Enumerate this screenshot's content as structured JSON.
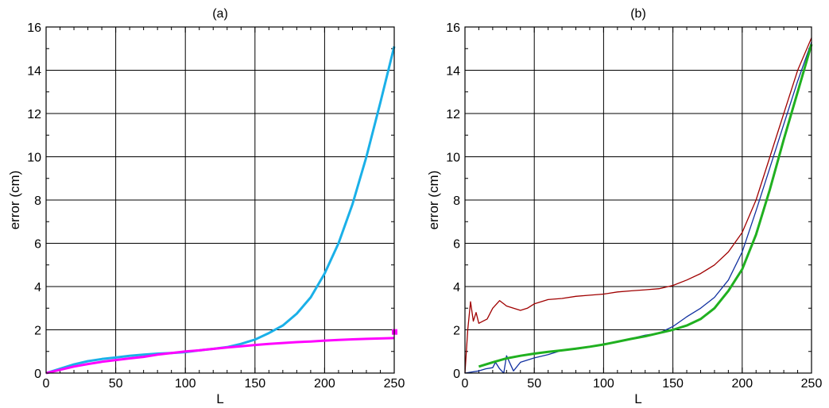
{
  "chart_data": [
    {
      "type": "line",
      "title": "(a)",
      "xlabel": "L",
      "ylabel": "error (cm)",
      "xlim": [
        0,
        250
      ],
      "ylim": [
        0,
        16
      ],
      "xticks": [
        "0",
        "50",
        "100",
        "150",
        "200",
        "250"
      ],
      "yticks": [
        "0",
        "2",
        "4",
        "6",
        "8",
        "10",
        "12",
        "14",
        "16"
      ],
      "grid": true,
      "series": [
        {
          "color": "#1ab0e8",
          "x": [
            0,
            10,
            20,
            30,
            40,
            50,
            60,
            70,
            80,
            90,
            100,
            110,
            120,
            130,
            140,
            150,
            160,
            170,
            180,
            190,
            200,
            210,
            220,
            230,
            240,
            250
          ],
          "y": [
            0,
            0.2,
            0.4,
            0.55,
            0.65,
            0.72,
            0.8,
            0.85,
            0.9,
            0.93,
            0.97,
            1.05,
            1.12,
            1.2,
            1.35,
            1.55,
            1.85,
            2.2,
            2.75,
            3.5,
            4.6,
            6.0,
            7.8,
            10.0,
            12.5,
            15.1
          ]
        },
        {
          "color": "#ff00ff",
          "marker_end": true,
          "x": [
            0,
            10,
            20,
            30,
            40,
            50,
            60,
            70,
            80,
            90,
            100,
            110,
            120,
            130,
            140,
            150,
            160,
            170,
            180,
            190,
            200,
            210,
            220,
            230,
            240,
            250
          ],
          "y": [
            0,
            0.15,
            0.3,
            0.42,
            0.52,
            0.6,
            0.68,
            0.75,
            0.85,
            0.93,
            1.0,
            1.05,
            1.12,
            1.18,
            1.24,
            1.3,
            1.35,
            1.39,
            1.43,
            1.46,
            1.5,
            1.53,
            1.56,
            1.58,
            1.6,
            1.62
          ]
        }
      ]
    },
    {
      "type": "line",
      "title": "(b)",
      "xlabel": "L",
      "ylabel": "error (cm)",
      "xlim": [
        0,
        250
      ],
      "ylim": [
        0,
        16
      ],
      "xticks": [
        "0",
        "50",
        "100",
        "150",
        "200",
        "250"
      ],
      "yticks": [
        "0",
        "2",
        "4",
        "6",
        "8",
        "10",
        "12",
        "14",
        "16"
      ],
      "grid": true,
      "series": [
        {
          "color": "#a00000",
          "x": [
            0,
            2,
            4,
            6,
            8,
            10,
            13,
            16,
            20,
            25,
            30,
            35,
            40,
            45,
            50,
            60,
            70,
            80,
            90,
            100,
            110,
            120,
            130,
            140,
            150,
            160,
            170,
            180,
            190,
            200,
            210,
            220,
            230,
            240,
            250
          ],
          "y": [
            0,
            2.0,
            3.3,
            2.4,
            2.8,
            2.3,
            2.4,
            2.5,
            3.0,
            3.35,
            3.1,
            3.0,
            2.9,
            3.0,
            3.2,
            3.4,
            3.45,
            3.55,
            3.6,
            3.65,
            3.75,
            3.8,
            3.85,
            3.9,
            4.05,
            4.3,
            4.6,
            5.0,
            5.6,
            6.5,
            8.0,
            10.0,
            12.0,
            14.0,
            15.5
          ]
        },
        {
          "color": "#1030a0",
          "x": [
            0,
            5,
            10,
            15,
            20,
            22,
            25,
            28,
            30,
            35,
            40,
            50,
            60,
            70,
            80,
            90,
            100,
            110,
            120,
            130,
            140,
            150,
            160,
            170,
            180,
            190,
            200,
            210,
            220,
            230,
            240,
            250
          ],
          "y": [
            0,
            0.05,
            0.1,
            0.2,
            0.25,
            0.5,
            0.2,
            0.0,
            0.8,
            0.1,
            0.5,
            0.7,
            0.85,
            1.05,
            1.1,
            1.2,
            1.35,
            1.45,
            1.6,
            1.75,
            1.85,
            2.15,
            2.6,
            3.0,
            3.5,
            4.3,
            5.6,
            7.5,
            9.5,
            11.5,
            13.5,
            15.3
          ]
        },
        {
          "color": "#20b020",
          "x": [
            10,
            20,
            30,
            40,
            50,
            60,
            70,
            80,
            90,
            100,
            110,
            120,
            130,
            140,
            150,
            160,
            170,
            180,
            190,
            200,
            210,
            220,
            230,
            240,
            250
          ],
          "y": [
            0.3,
            0.5,
            0.68,
            0.8,
            0.9,
            0.98,
            1.05,
            1.13,
            1.22,
            1.32,
            1.45,
            1.58,
            1.7,
            1.85,
            2.0,
            2.2,
            2.5,
            3.0,
            3.8,
            4.8,
            6.4,
            8.5,
            10.8,
            13.0,
            15.2
          ]
        }
      ]
    }
  ]
}
